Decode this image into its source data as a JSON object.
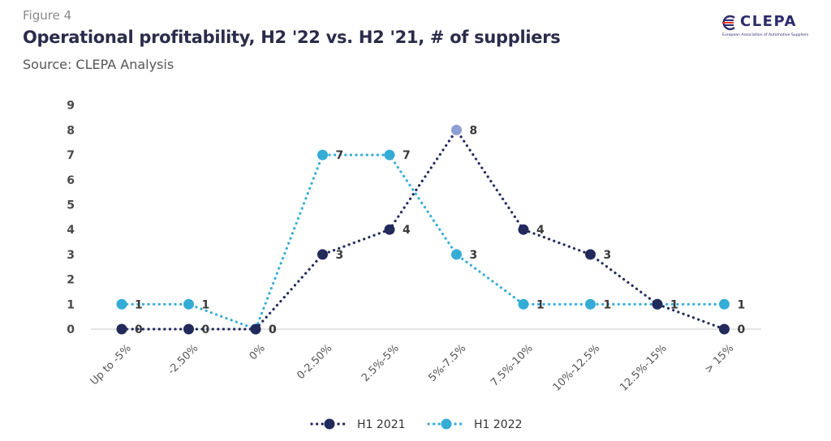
{
  "header": {
    "figure_label": "Figure 4",
    "title": "Operational profitability, H2 '22 vs. H2 '21, # of suppliers",
    "source": "Source: CLEPA Analysis"
  },
  "logo": {
    "name": "CLEPA",
    "tagline": "European Association of Automotive Suppliers",
    "icon": "clepa-logo-icon"
  },
  "colors": {
    "h1_2021": "#222a5c",
    "h1_2022": "#35acd6",
    "highlight_point": "#8e9fd6",
    "axis": "#c8c8c8"
  },
  "chart_data": {
    "type": "line",
    "categories": [
      "Up to -5%",
      "-2.50%",
      "0%",
      "0-2.50%",
      "2.5%-5%",
      "5%-7.5%",
      "7.5%-10%",
      "10%-12.5%",
      "12.5%-15%",
      "> 15%"
    ],
    "series": [
      {
        "name": "H1 2021",
        "values": [
          0,
          0,
          0,
          3,
          4,
          8,
          4,
          3,
          1,
          0
        ],
        "color": "#222a5c",
        "line_style": "dotted"
      },
      {
        "name": "H1 2022",
        "values": [
          1,
          1,
          0,
          7,
          7,
          3,
          1,
          1,
          1,
          1
        ],
        "color": "#35acd6",
        "line_style": "dotted"
      }
    ],
    "ylim": [
      0,
      9
    ],
    "yticks": [
      "0",
      "1",
      "2",
      "3",
      "4",
      "5",
      "6",
      "7",
      "8",
      "9"
    ],
    "grid": false,
    "data_labels": true,
    "legend_position": "bottom-center"
  }
}
